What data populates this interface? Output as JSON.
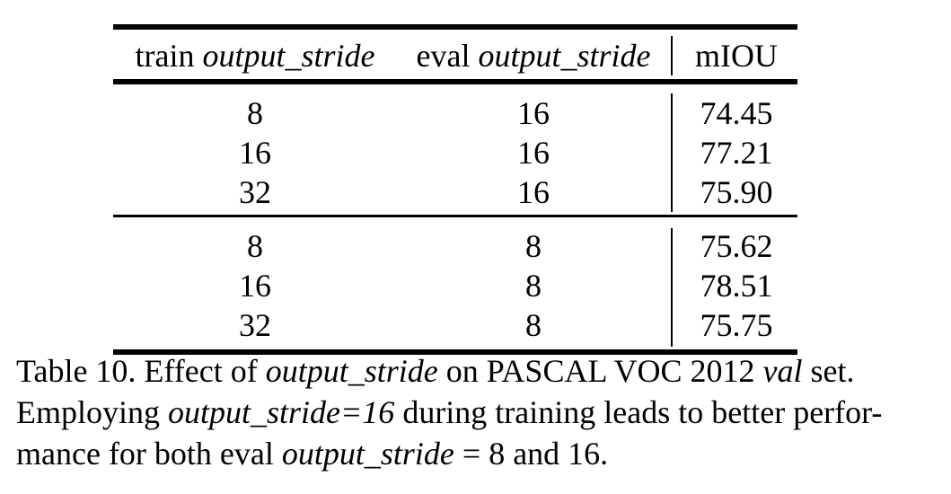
{
  "table": {
    "headers": {
      "col1_prefix": "train",
      "col1_italic": "output_stride",
      "col2_prefix": "eval",
      "col2_italic": "output_stride",
      "col3": "mIOU"
    },
    "group1": [
      {
        "train": "8",
        "eval": "16",
        "miou": "74.45"
      },
      {
        "train": "16",
        "eval": "16",
        "miou": "77.21"
      },
      {
        "train": "32",
        "eval": "16",
        "miou": "75.90"
      }
    ],
    "group2": [
      {
        "train": "8",
        "eval": "8",
        "miou": "75.62"
      },
      {
        "train": "16",
        "eval": "8",
        "miou": "78.51"
      },
      {
        "train": "32",
        "eval": "8",
        "miou": "75.75"
      }
    ]
  },
  "caption": {
    "l1_a": "Table 10. Effect of ",
    "l1_b": "output_stride",
    "l1_c": " on PASCAL VOC 2012 ",
    "l1_d": "val",
    "l1_e": " set.",
    "l2_a": "Employing ",
    "l2_b": "output_stride=16",
    "l2_c": " during training leads to better perfor-",
    "l3_a": "mance for both eval ",
    "l3_b": "output_stride",
    "l3_c": " = 8 and 16."
  }
}
